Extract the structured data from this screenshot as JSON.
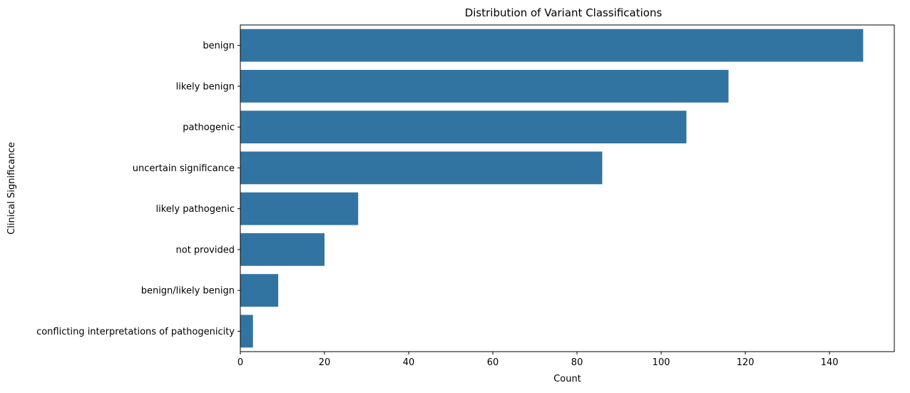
{
  "chart_data": {
    "type": "bar",
    "orientation": "horizontal",
    "title": "Distribution of Variant Classifications",
    "xlabel": "Count",
    "ylabel": "Clinical Significance",
    "categories": [
      "benign",
      "likely benign",
      "pathogenic",
      "uncertain significance",
      "likely pathogenic",
      "not provided",
      "benign/likely benign",
      "conflicting interpretations of pathogenicity"
    ],
    "values": [
      148,
      116,
      106,
      86,
      28,
      20,
      9,
      3
    ],
    "xlim": [
      0,
      155.4
    ],
    "xticks": [
      0,
      20,
      40,
      60,
      80,
      100,
      120,
      140
    ],
    "grid": false,
    "legend": "none",
    "colors": {
      "bar": "#3274a1",
      "axis": "#000000",
      "background": "#ffffff"
    }
  }
}
